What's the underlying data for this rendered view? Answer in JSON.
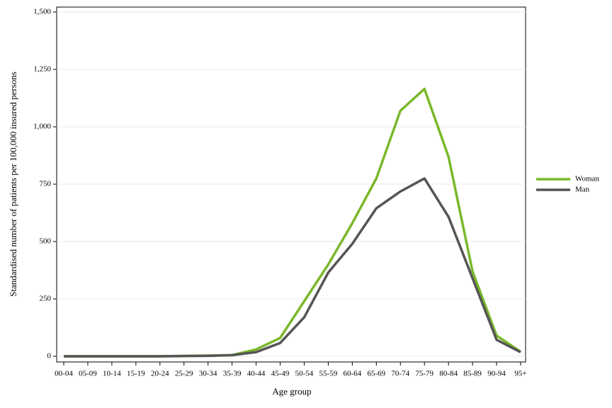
{
  "chart_data": {
    "type": "line",
    "x_label": "Age group",
    "y_label": "Standardised number of patients per 100,000 insured persons",
    "categories": [
      "00-04",
      "05-09",
      "10-14",
      "15-19",
      "20-24",
      "25-29",
      "30-34",
      "35-39",
      "40-44",
      "45-49",
      "50-54",
      "55-59",
      "60-64",
      "65-69",
      "70-74",
      "75-79",
      "80-84",
      "85-89",
      "90-94",
      "95+"
    ],
    "series": [
      {
        "name": "Woman",
        "color": "#7ab82a",
        "values": [
          0,
          0,
          0,
          0,
          0,
          2,
          3,
          5,
          30,
          80,
          240,
          400,
          580,
          775,
          1070,
          1165,
          870,
          370,
          90,
          20
        ]
      },
      {
        "name": "Man",
        "color": "#555555",
        "values": [
          0,
          0,
          0,
          0,
          0,
          1,
          2,
          5,
          18,
          58,
          170,
          365,
          490,
          645,
          718,
          775,
          608,
          340,
          72,
          18
        ]
      }
    ],
    "ylim": [
      0,
      1500
    ],
    "yticks": [
      0,
      250,
      500,
      750,
      {
        "value": 1000,
        "label": "1,000"
      },
      {
        "value": 1250,
        "label": "1,250"
      },
      {
        "value": 1500,
        "label": "1,500"
      }
    ],
    "grid": true,
    "legend": "right"
  }
}
